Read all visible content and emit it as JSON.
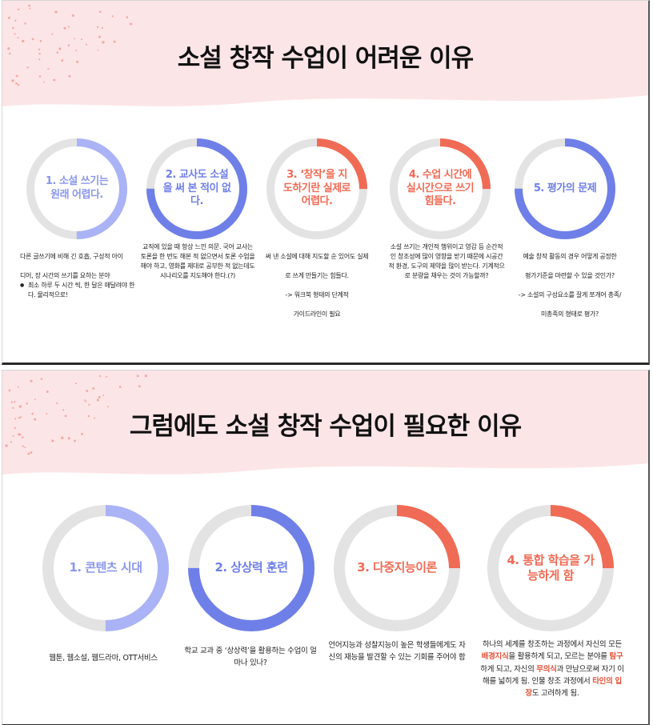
{
  "colors": {
    "band": "#fce5e7",
    "track": "#e3e3e3",
    "blue_light": "#aab3f5",
    "blue": "#6f7fe8",
    "coral": "#f06b55"
  },
  "slide1": {
    "title": "소설 창작 수업이 어려운 이유",
    "items": [
      {
        "label": "1. 소설 쓰기는 원래 어렵다.",
        "progress": 0.5,
        "color": "#aab3f5",
        "desc_lines": [
          "다른 글쓰기에 비해 긴 호흡, 구성적 아이",
          "디어, 장 시간의 쓰기를 요하는 분야"
        ],
        "bullet": "최소 하루 두 시간 씩, 한 달은 매달려야 한다. 물리적으로!"
      },
      {
        "label": "2. 교사도 소설을 써 본 적이 없다.",
        "progress": 0.75,
        "color": "#6f7fe8",
        "desc": "교직에 있을 때 항상 느낀 의문. 국어 교사는 토론을 한 번도 해본 적 없으면서 토론 수업을 해야 하고, 영화를 제대로 공부한 적 없는데도 시나리오를 지도해야 한다.(?)"
      },
      {
        "label": "3. ‘창작’을 지도하기란 실제로 어렵다.",
        "progress": 0.25,
        "color": "#f06b55",
        "desc_lines": [
          "써 낸 소설에 대해 지도할 순 있어도 실제",
          "로 쓰게 만들기는 힘들다.",
          "-> 워크북 형태의 단계적",
          "가이드라인이 필요"
        ]
      },
      {
        "label": "4. 수업 시간에 실시간으로 쓰기 힘들다.",
        "progress": 0.25,
        "color": "#f06b55",
        "desc": "소설 쓰기는 개인적 행위이고 영감 등 순간적인 창조성에 많이 영향을 받기 때문에 시공간적 환경, 도구의 제약을 많이 받는다. 기계적으로 분량을 채우는 것이 가능할까?"
      },
      {
        "label": "5. 평가의 문제",
        "progress": 0.75,
        "color": "#6f7fe8",
        "desc_lines": [
          "예술 창작 활동의 경우 어떻게 공정한",
          "평가기준을 마련할 수 있을 것인가?",
          "-> 소설의 구성요소를 잘게 쪼개어 총족/",
          "미총족의 형태로 평가?"
        ]
      }
    ]
  },
  "slide2": {
    "title": "그럼에도 소설 창작 수업이 필요한 이유",
    "items": [
      {
        "label": "1. 콘텐츠 시대",
        "progress": 0.5,
        "color": "#aab3f5",
        "desc": "웹툰, 웹소설, 웹드라마, OTT서비스"
      },
      {
        "label": "2. 상상력 훈련",
        "progress": 0.75,
        "color": "#6f7fe8",
        "desc": "학교 교과 중 ‘상상력’을 활용하는 수업이 얼마나 있나?"
      },
      {
        "label": "3. 다중지능이론",
        "progress": 0.25,
        "color": "#f06b55",
        "desc": "언어지능과 성찰지능이 높은 학생들에게도 자신의 재능을 발견할 수 있는 기회를 주어야 함"
      },
      {
        "label": "4. 통합 학습을 가능하게 함",
        "progress": 0.25,
        "color": "#f06b55",
        "desc": {
          "p1": "하나의 세계를 창조하는 과정에서 자신의 모든 ",
          "h1": "배경지식",
          "p2": "을 활용하게 되고, 모르는 분야를 ",
          "h2": "탐구",
          "p3": "하게 되고, 자신의 ",
          "h3": "무의식",
          "p4": "과 만남으로써 자기 이해를 넓히게 됨. 인물 창조 과정에서 ",
          "h4": "타인의 입장",
          "p5": "도 고려하게 됨."
        }
      }
    ]
  }
}
